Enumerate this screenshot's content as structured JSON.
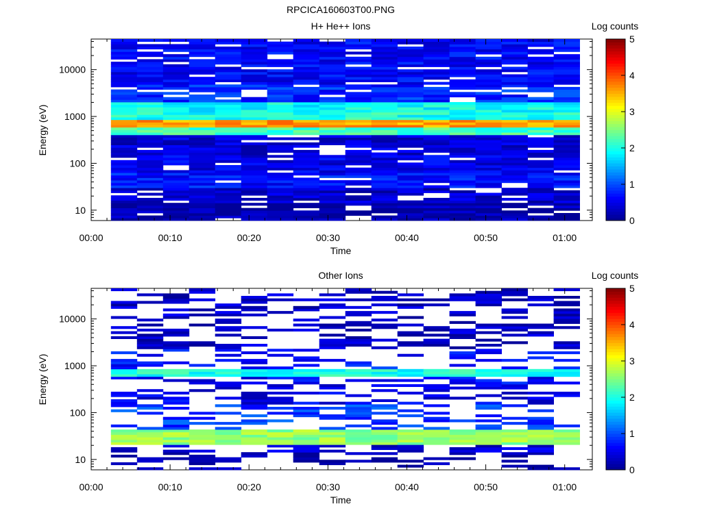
{
  "file_title": "RPCICA160603T00.PNG",
  "colormap": [
    "#00008f",
    "#0000ff",
    "#0080ff",
    "#00ffff",
    "#80ff80",
    "#ffff00",
    "#ff8000",
    "#ff0000",
    "#800000"
  ],
  "chart_data": [
    {
      "type": "heatmap",
      "title": "H+ He++ Ions",
      "xlabel": "Time",
      "ylabel": "Energy (eV)",
      "x_ticks": [
        "00:00",
        "00:10",
        "00:20",
        "00:30",
        "00:40",
        "00:50",
        "01:00"
      ],
      "xlim_minutes": [
        0,
        63.5
      ],
      "y_scale": "log",
      "ylim": [
        6,
        45000
      ],
      "y_ticks": [
        "10",
        "100",
        "1000",
        "10000"
      ],
      "colorbar": {
        "label": "Log counts",
        "ticks": [
          "0",
          "1",
          "2",
          "3",
          "4",
          "5"
        ],
        "range": [
          0,
          5
        ]
      },
      "time_bins_minutes": [
        2.5,
        5.8,
        9.1,
        12.4,
        15.7,
        19,
        22.3,
        25.6,
        28.9,
        32.2,
        35.5,
        38.8,
        42.1,
        45.4,
        48.7,
        52,
        55.3,
        58.6,
        61.9
      ],
      "energy_band_log_counts": [
        {
          "energy_min_ev": 6,
          "energy_max_ev": 15,
          "log_counts": 0.15
        },
        {
          "energy_min_ev": 15,
          "energy_max_ev": 30,
          "log_counts": 0.35
        },
        {
          "energy_min_ev": 30,
          "energy_max_ev": 60,
          "log_counts": 0.7
        },
        {
          "energy_min_ev": 60,
          "energy_max_ev": 150,
          "log_counts": 0.5
        },
        {
          "energy_min_ev": 150,
          "energy_max_ev": 400,
          "log_counts": 0.4
        },
        {
          "energy_min_ev": 400,
          "energy_max_ev": 600,
          "log_counts": 2.2
        },
        {
          "energy_min_ev": 600,
          "energy_max_ev": 900,
          "log_counts": 3.6
        },
        {
          "energy_min_ev": 900,
          "energy_max_ev": 1200,
          "log_counts": 2.0
        },
        {
          "energy_min_ev": 1200,
          "energy_max_ev": 2000,
          "log_counts": 1.9
        },
        {
          "energy_min_ev": 2000,
          "energy_max_ev": 5000,
          "log_counts": 0.8
        },
        {
          "energy_min_ev": 5000,
          "energy_max_ev": 45000,
          "log_counts": 0.6
        }
      ],
      "empty_fraction": 0.12
    },
    {
      "type": "heatmap",
      "title": "Other Ions",
      "xlabel": "Time",
      "ylabel": "Energy (eV)",
      "x_ticks": [
        "00:00",
        "00:10",
        "00:20",
        "00:30",
        "00:40",
        "00:50",
        "01:00"
      ],
      "xlim_minutes": [
        0,
        63.5
      ],
      "y_scale": "log",
      "ylim": [
        6,
        45000
      ],
      "y_ticks": [
        "10",
        "100",
        "1000",
        "10000"
      ],
      "colorbar": {
        "label": "Log counts",
        "ticks": [
          "0",
          "1",
          "2",
          "3",
          "4",
          "5"
        ],
        "range": [
          0,
          5
        ]
      },
      "time_bins_minutes": [
        2.5,
        5.8,
        9.1,
        12.4,
        15.7,
        19,
        22.3,
        25.6,
        28.9,
        32.2,
        35.5,
        38.8,
        42.1,
        45.4,
        48.7,
        52,
        55.3,
        58.6,
        61.9
      ],
      "energy_band_log_counts": [
        {
          "energy_min_ev": 6,
          "energy_max_ev": 14,
          "log_counts": 0.1
        },
        {
          "energy_min_ev": 14,
          "energy_max_ev": 22,
          "log_counts": 0.4
        },
        {
          "energy_min_ev": 22,
          "energy_max_ev": 45,
          "log_counts": 2.6
        },
        {
          "energy_min_ev": 45,
          "energy_max_ev": 150,
          "log_counts": 0.9
        },
        {
          "energy_min_ev": 150,
          "energy_max_ev": 400,
          "log_counts": 0.5
        },
        {
          "energy_min_ev": 400,
          "energy_max_ev": 600,
          "log_counts": 0.6
        },
        {
          "energy_min_ev": 600,
          "energy_max_ev": 900,
          "log_counts": 2.0
        },
        {
          "energy_min_ev": 900,
          "energy_max_ev": 2200,
          "log_counts": 0.7
        },
        {
          "energy_min_ev": 2200,
          "energy_max_ev": 45000,
          "log_counts": 0.3
        }
      ],
      "empty_fraction": 0.6
    }
  ]
}
